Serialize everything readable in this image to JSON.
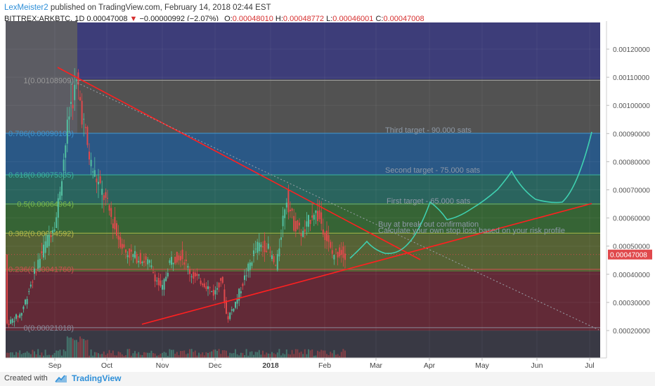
{
  "header": {
    "author": "LexMeister2",
    "published": " published on TradingView.com, February 14, 2018 02:44 EST",
    "symbol": "BITTREX:ARKBTC, 1D",
    "last": "0.00047008",
    "change": "−0.00000992 (−2.07%)",
    "o_label": "O:",
    "o_value": "0.00048010",
    "h_label": "H:",
    "h_value": "0.00048772",
    "l_label": "L:",
    "l_value": "0.00046001",
    "c_label": "C:",
    "c_value": "0.00047008"
  },
  "footer": {
    "created": "Created with",
    "brand": "TradingView"
  },
  "colors": {
    "up": "#52bfa0",
    "down": "#e0494c",
    "trendline": "#ff2020",
    "projection": "#3fd0b0",
    "price_tag": "#e0494c"
  },
  "chart_data": {
    "type": "candlestick",
    "x_ticks": [
      "Sep",
      "Oct",
      "Nov",
      "Dec",
      "2018",
      "Feb",
      "Mar",
      "Apr",
      "May",
      "Jun",
      "Jul"
    ],
    "y_ticks": [
      "0.00120000",
      "0.00110000",
      "0.00100000",
      "0.00090000",
      "0.00080000",
      "0.00070000",
      "0.00060000",
      "0.00050000",
      "0.00040000",
      "0.00030000",
      "0.00020000"
    ],
    "y_range": [
      0.00015,
      0.00131
    ],
    "current_price": "0.00047008",
    "current_value": 0.00047008,
    "fib_levels": [
      {
        "label": "1(0.00108909)",
        "value": 0.00108909
      },
      {
        "label": "0.786(0.00090100)",
        "value": 0.000901
      },
      {
        "label": "0.618(0.00075335)",
        "value": 0.00075335
      },
      {
        "label": "0.5(0.00064964)",
        "value": 0.00064964
      },
      {
        "label": "0.382(0.00054592)",
        "value": 0.00054592
      },
      {
        "label": "0.236(0.00041760)",
        "value": 0.0004176
      },
      {
        "label": "0(0.00021018)",
        "value": 0.00021018
      }
    ],
    "annotations": [
      {
        "text": "Third target - 90.000 sats"
      },
      {
        "text": "Second target - 75.000 sats"
      },
      {
        "text": "First target - 65.000 sats"
      },
      {
        "text": "Buy at break out confirmation"
      },
      {
        "text": "Calculate your own stop loss based on your risk profile"
      }
    ]
  }
}
